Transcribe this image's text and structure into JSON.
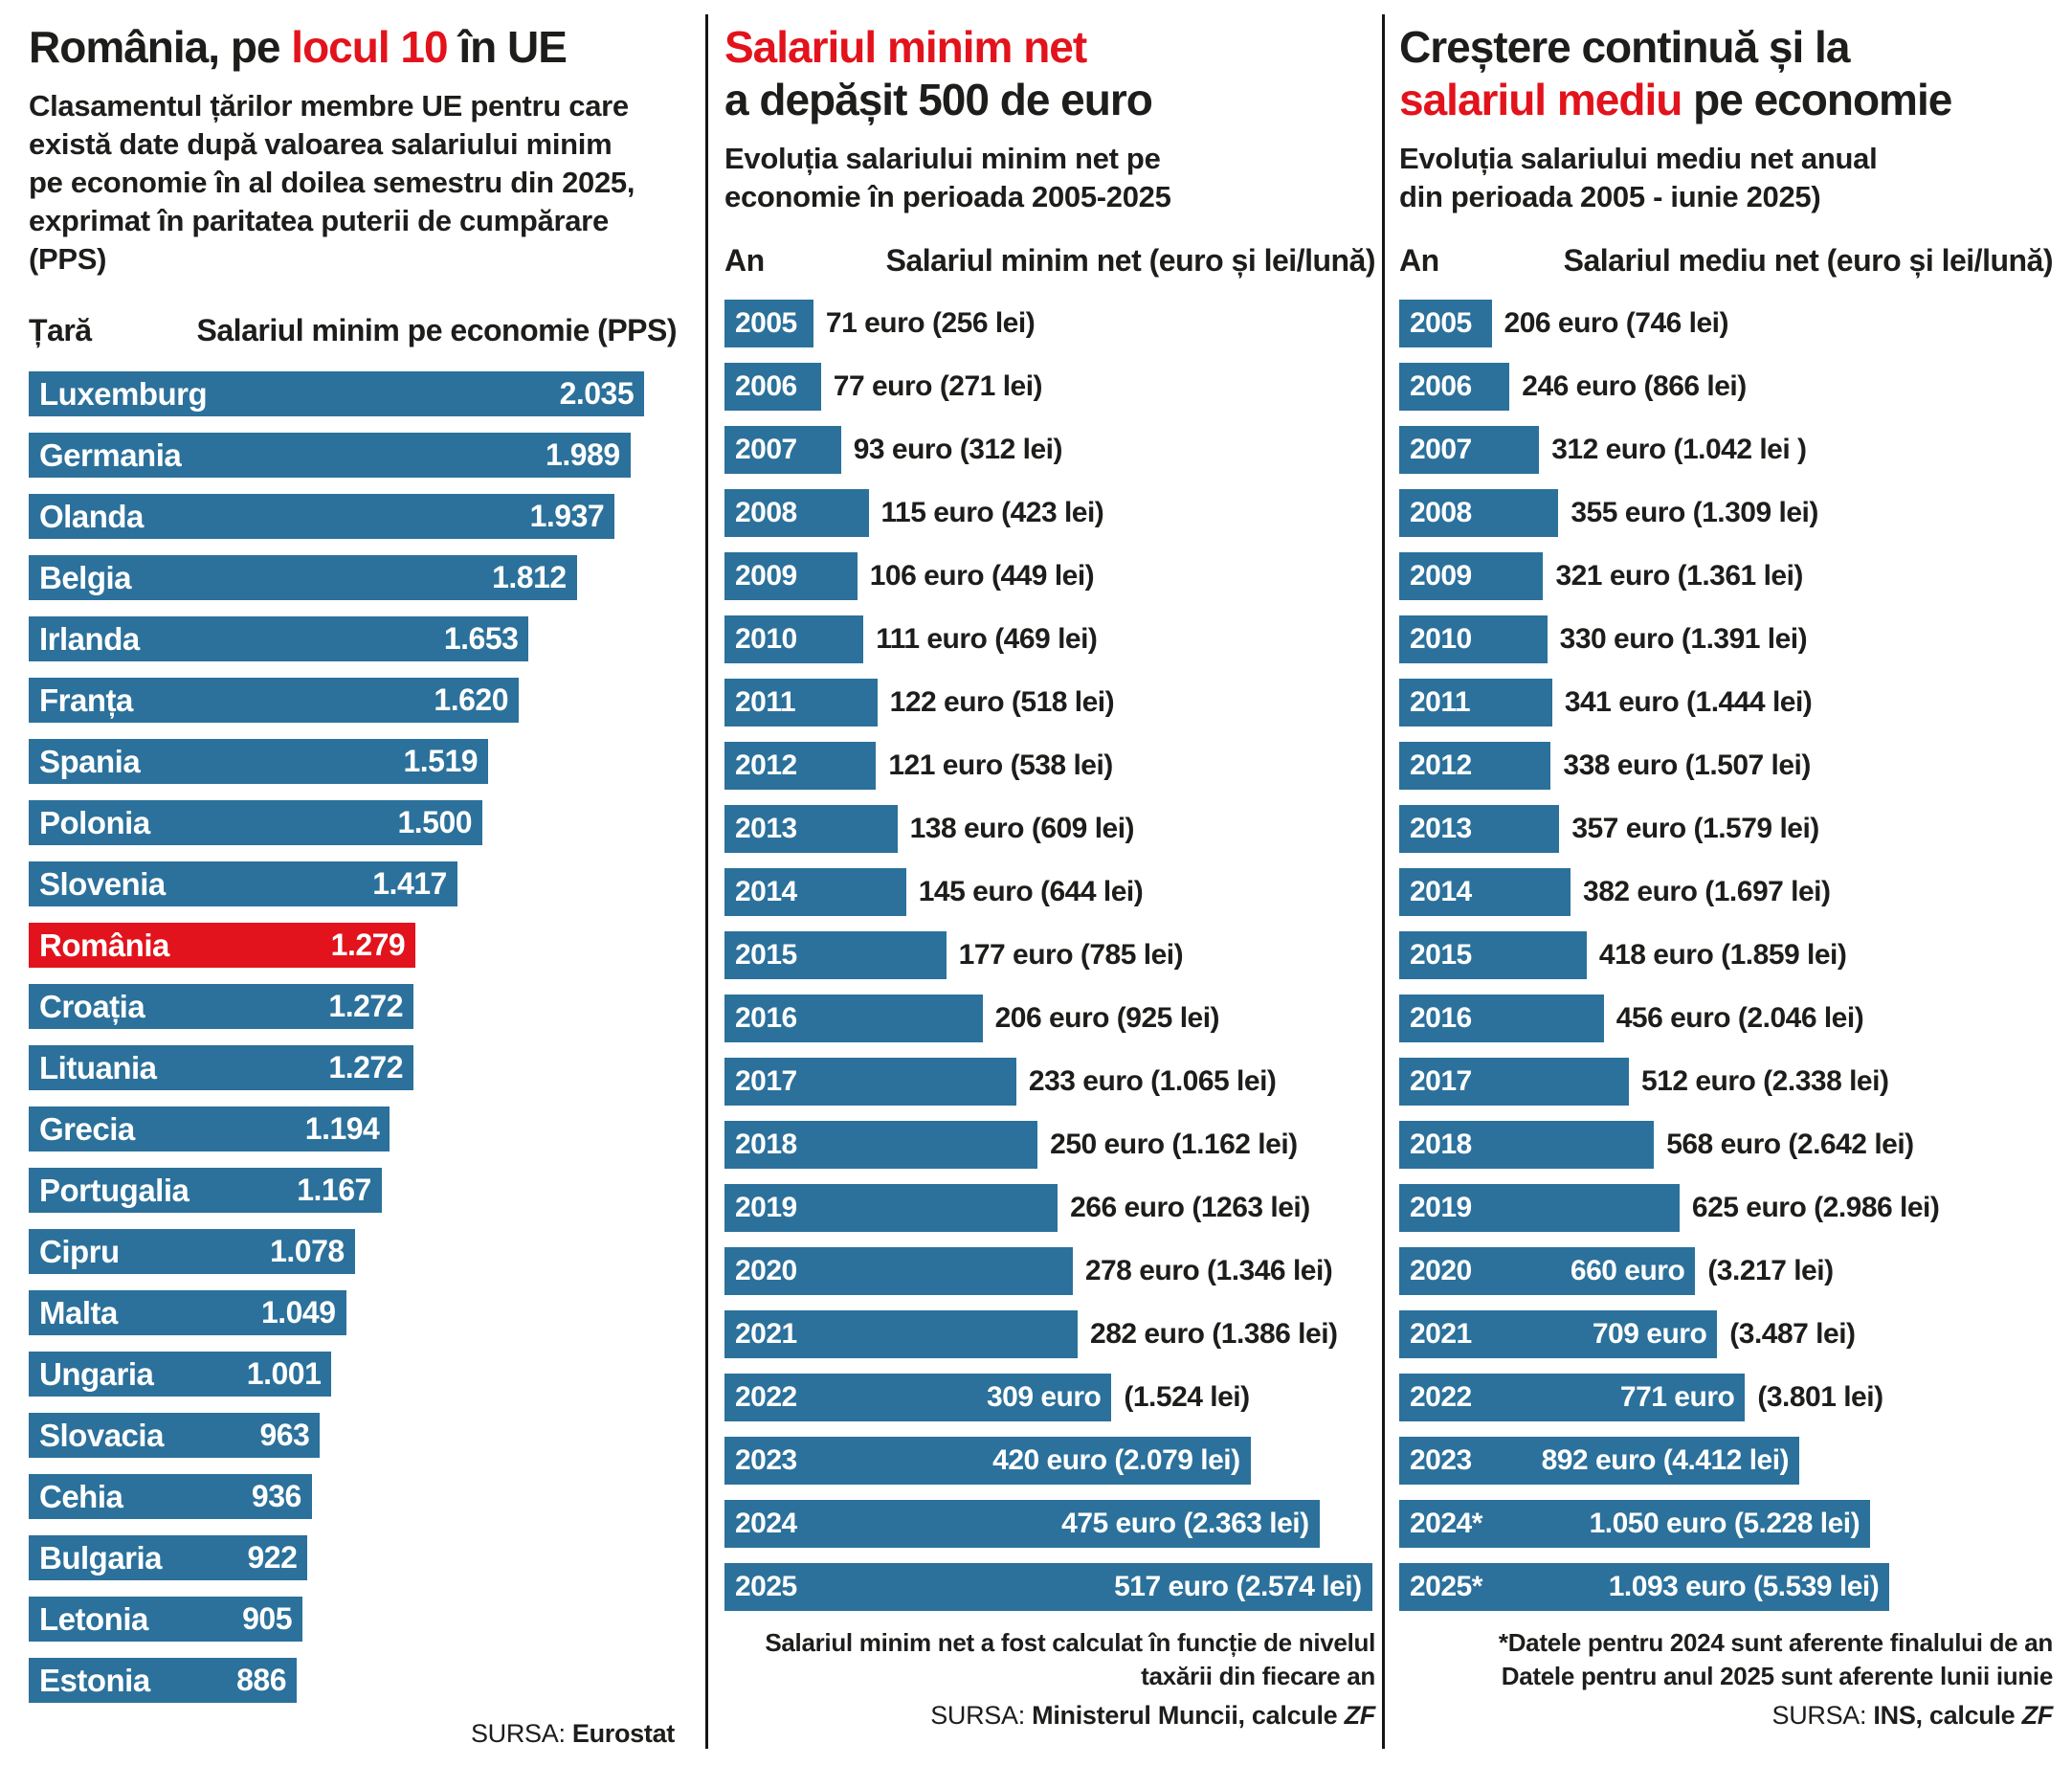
{
  "colors": {
    "bar_blue": "#2b719b",
    "accent_red": "#e2131c"
  },
  "panels": {
    "left": {
      "title_black_prefix": "România, pe ",
      "title_red": "locul 10",
      "title_black_suffix": " în UE",
      "subtitle": "Clasamentul țărilor membre UE pentru care există date după valoarea salariului minim pe economie în al doilea semestru din 2025, exprimat în paritatea puterii de cumpărare (PPS)",
      "col_header_left": "Țară",
      "col_header_right": "Salariul minim pe economie (PPS)",
      "rows": [
        {
          "label": "Luxemburg",
          "value": 2035,
          "text_in": "2.035"
        },
        {
          "label": "Germania",
          "value": 1989,
          "text_in": "1.989"
        },
        {
          "label": "Olanda",
          "value": 1937,
          "text_in": "1.937"
        },
        {
          "label": "Belgia",
          "value": 1812,
          "text_in": "1.812"
        },
        {
          "label": "Irlanda",
          "value": 1653,
          "text_in": "1.653"
        },
        {
          "label": "Franța",
          "value": 1620,
          "text_in": "1.620"
        },
        {
          "label": "Spania",
          "value": 1519,
          "text_in": "1.519"
        },
        {
          "label": "Polonia",
          "value": 1500,
          "text_in": "1.500"
        },
        {
          "label": "Slovenia",
          "value": 1417,
          "text_in": "1.417"
        },
        {
          "label": "România",
          "value": 1279,
          "text_in": "1.279",
          "highlight": true
        },
        {
          "label": "Croația",
          "value": 1272,
          "text_in": "1.272"
        },
        {
          "label": "Lituania",
          "value": 1272,
          "text_in": "1.272"
        },
        {
          "label": "Grecia",
          "value": 1194,
          "text_in": "1.194"
        },
        {
          "label": "Portugalia",
          "value": 1167,
          "text_in": "1.167"
        },
        {
          "label": "Cipru",
          "value": 1078,
          "text_in": "1.078"
        },
        {
          "label": "Malta",
          "value": 1049,
          "text_in": "1.049"
        },
        {
          "label": "Ungaria",
          "value": 1001,
          "text_in": "1.001"
        },
        {
          "label": "Slovacia",
          "value": 963,
          "text_in": "963"
        },
        {
          "label": "Cehia",
          "value": 936,
          "text_in": "936"
        },
        {
          "label": "Bulgaria",
          "value": 922,
          "text_in": "922"
        },
        {
          "label": "Letonia",
          "value": 905,
          "text_in": "905"
        },
        {
          "label": "Estonia",
          "value": 886,
          "text_in": "886"
        }
      ],
      "source_label": "SURSA: ",
      "source_name": "Eurostat"
    },
    "middle": {
      "title_red": "Salariul minim net",
      "title_black": "a depășit 500 de euro",
      "subtitle_line1": "Evoluția salariului minim net pe",
      "subtitle_line2": "economie în perioada 2005-2025",
      "col_header_left": "An",
      "col_header_right": "Salariul minim net (euro și lei/lună)",
      "rows": [
        {
          "label": "2005",
          "value": 71,
          "text_out": "71 euro (256 lei)"
        },
        {
          "label": "2006",
          "value": 77,
          "text_out": "77 euro (271 lei)"
        },
        {
          "label": "2007",
          "value": 93,
          "text_out": "93 euro (312 lei)"
        },
        {
          "label": "2008",
          "value": 115,
          "text_out": "115 euro (423 lei)"
        },
        {
          "label": "2009",
          "value": 106,
          "text_out": "106 euro (449 lei)"
        },
        {
          "label": "2010",
          "value": 111,
          "text_out": "111 euro (469 lei)"
        },
        {
          "label": "2011",
          "value": 122,
          "text_out": "122 euro (518 lei)"
        },
        {
          "label": "2012",
          "value": 121,
          "text_out": "121 euro (538 lei)"
        },
        {
          "label": "2013",
          "value": 138,
          "text_out": "138 euro (609 lei)"
        },
        {
          "label": "2014",
          "value": 145,
          "text_out": "145 euro (644 lei)"
        },
        {
          "label": "2015",
          "value": 177,
          "text_out": "177 euro (785 lei)"
        },
        {
          "label": "2016",
          "value": 206,
          "text_out": "206 euro (925 lei)"
        },
        {
          "label": "2017",
          "value": 233,
          "text_out": "233 euro (1.065 lei)"
        },
        {
          "label": "2018",
          "value": 250,
          "text_out": "250 euro (1.162 lei)"
        },
        {
          "label": "2019",
          "value": 266,
          "text_out": "266 euro (1263 lei)"
        },
        {
          "label": "2020",
          "value": 278,
          "text_out": "278 euro (1.346 lei)"
        },
        {
          "label": "2021",
          "value": 282,
          "text_out": "282 euro (1.386 lei)"
        },
        {
          "label": "2022",
          "value": 309,
          "text_in": "309 euro",
          "text_out": "(1.524 lei)"
        },
        {
          "label": "2023",
          "value": 420,
          "text_in": "420 euro (2.079 lei)"
        },
        {
          "label": "2024",
          "value": 475,
          "text_in": "475 euro (2.363 lei)"
        },
        {
          "label": "2025",
          "value": 517,
          "text_in": "517 euro (2.574 lei)"
        }
      ],
      "footnote_line1": "Salariul minim net a fost calculat în funcție de nivelul",
      "footnote_line2": "taxării din fiecare an",
      "source_label": "SURSA: ",
      "source_name": "Ministerul Muncii, calcule ",
      "source_italic": "ZF"
    },
    "right": {
      "title_black_line1": "Creștere continuă și la",
      "title_red": "salariul mediu",
      "title_black_line2": " pe economie",
      "subtitle_line1": "Evoluția salariului mediu net anual",
      "subtitle_line2": "din perioada 2005 - iunie 2025)",
      "col_header_left": "An",
      "col_header_right": "Salariul mediu net (euro și lei/lună)",
      "rows": [
        {
          "label": "2005",
          "value": 206,
          "text_out": "206 euro (746 lei)"
        },
        {
          "label": "2006",
          "value": 246,
          "text_out": "246 euro (866 lei)"
        },
        {
          "label": "2007",
          "value": 312,
          "text_out": "312 euro (1.042 lei )"
        },
        {
          "label": "2008",
          "value": 355,
          "text_out": "355 euro (1.309 lei)"
        },
        {
          "label": "2009",
          "value": 321,
          "text_out": "321 euro (1.361 lei)"
        },
        {
          "label": "2010",
          "value": 330,
          "text_out": "330 euro (1.391 lei)"
        },
        {
          "label": "2011",
          "value": 341,
          "text_out": "341 euro (1.444 lei)"
        },
        {
          "label": "2012",
          "value": 338,
          "text_out": "338 euro (1.507 lei)"
        },
        {
          "label": "2013",
          "value": 357,
          "text_out": "357 euro (1.579 lei)"
        },
        {
          "label": "2014",
          "value": 382,
          "text_out": "382 euro (1.697 lei)"
        },
        {
          "label": "2015",
          "value": 418,
          "text_out": "418 euro (1.859 lei)"
        },
        {
          "label": "2016",
          "value": 456,
          "text_out": "456 euro (2.046 lei)"
        },
        {
          "label": "2017",
          "value": 512,
          "text_out": "512 euro (2.338 lei)"
        },
        {
          "label": "2018",
          "value": 568,
          "text_out": "568 euro (2.642 lei)"
        },
        {
          "label": "2019",
          "value": 625,
          "text_out": "625 euro (2.986 lei)"
        },
        {
          "label": "2020",
          "value": 660,
          "text_in": "660 euro",
          "text_out": "(3.217 lei)"
        },
        {
          "label": "2021",
          "value": 709,
          "text_in": "709 euro",
          "text_out": "(3.487 lei)"
        },
        {
          "label": "2022",
          "value": 771,
          "text_in": "771 euro",
          "text_out": "(3.801 lei)"
        },
        {
          "label": "2023",
          "value": 892,
          "text_in": "892 euro (4.412 lei)"
        },
        {
          "label": "2024*",
          "value": 1050,
          "text_in": "1.050 euro (5.228 lei)"
        },
        {
          "label": "2025*",
          "value": 1093,
          "text_in": "1.093 euro (5.539 lei)"
        }
      ],
      "footnote_line1": "*Datele pentru 2024 sunt aferente finalului de an",
      "footnote_line2": "Datele pentru anul 2025 sunt aferente lunii iunie",
      "source_label": "SURSA: ",
      "source_name": "INS, calcule ",
      "source_italic": "ZF"
    }
  },
  "chart_data": [
    {
      "type": "bar",
      "orientation": "horizontal",
      "title": "România, pe locul 10 în UE",
      "subtitle": "Clasamentul țărilor membre UE pentru care există date după valoarea salariului minim pe economie în al doilea semestru din 2025, exprimat în paritatea puterii de cumpărare (PPS)",
      "xlabel": "Salariul minim pe economie (PPS)",
      "categories": [
        "Luxemburg",
        "Germania",
        "Olanda",
        "Belgia",
        "Irlanda",
        "Franța",
        "Spania",
        "Polonia",
        "Slovenia",
        "România",
        "Croația",
        "Lituania",
        "Grecia",
        "Portugalia",
        "Cipru",
        "Malta",
        "Ungaria",
        "Slovacia",
        "Cehia",
        "Bulgaria",
        "Letonia",
        "Estonia"
      ],
      "values": [
        2035,
        1989,
        1937,
        1812,
        1653,
        1620,
        1519,
        1500,
        1417,
        1279,
        1272,
        1272,
        1194,
        1167,
        1078,
        1049,
        1001,
        963,
        936,
        922,
        905,
        886
      ],
      "highlight_category": "România",
      "xlim": [
        0,
        2140
      ],
      "grid": false,
      "legend": "none",
      "source": "Eurostat"
    },
    {
      "type": "bar",
      "orientation": "horizontal",
      "title": "Salariul minim net a depășit 500 de euro",
      "subtitle": "Evoluția salariului minim net pe economie în perioada 2005-2025",
      "xlabel": "Salariul minim net (euro și lei/lună)",
      "categories": [
        "2005",
        "2006",
        "2007",
        "2008",
        "2009",
        "2010",
        "2011",
        "2012",
        "2013",
        "2014",
        "2015",
        "2016",
        "2017",
        "2018",
        "2019",
        "2020",
        "2021",
        "2022",
        "2023",
        "2024",
        "2025"
      ],
      "series": [
        {
          "name": "euro",
          "values": [
            71,
            77,
            93,
            115,
            106,
            111,
            122,
            121,
            138,
            145,
            177,
            206,
            233,
            250,
            266,
            278,
            282,
            309,
            420,
            475,
            517
          ]
        },
        {
          "name": "lei",
          "values": [
            256,
            271,
            312,
            423,
            449,
            469,
            518,
            538,
            609,
            644,
            785,
            925,
            1065,
            1162,
            1263,
            1346,
            1386,
            1524,
            2079,
            2363,
            2574
          ]
        }
      ],
      "xlim": [
        0,
        520
      ],
      "grid": false,
      "legend": "none",
      "footnote": "Salariul minim net a fost calculat în funcție de nivelul taxării din fiecare an",
      "source": "Ministerul Muncii, calcule ZF"
    },
    {
      "type": "bar",
      "orientation": "horizontal",
      "title": "Creștere continuă și la salariul mediu pe economie",
      "subtitle": "Evoluția salariului mediu net anual din perioada 2005 - iunie 2025)",
      "xlabel": "Salariul mediu net (euro și lei/lună)",
      "categories": [
        "2005",
        "2006",
        "2007",
        "2008",
        "2009",
        "2010",
        "2011",
        "2012",
        "2013",
        "2014",
        "2015",
        "2016",
        "2017",
        "2018",
        "2019",
        "2020",
        "2021",
        "2022",
        "2023",
        "2024*",
        "2025*"
      ],
      "series": [
        {
          "name": "euro",
          "values": [
            206,
            246,
            312,
            355,
            321,
            330,
            341,
            338,
            357,
            382,
            418,
            456,
            512,
            568,
            625,
            660,
            709,
            771,
            892,
            1050,
            1093
          ]
        },
        {
          "name": "lei",
          "values": [
            746,
            866,
            1042,
            1309,
            1361,
            1391,
            1444,
            1507,
            1579,
            1697,
            1859,
            2046,
            2338,
            2642,
            2986,
            3217,
            3487,
            3801,
            4412,
            5228,
            5539
          ]
        }
      ],
      "xlim": [
        0,
        1100
      ],
      "grid": false,
      "legend": "none",
      "footnote": "*Datele pentru 2024 sunt aferente finalului de an. Datele pentru anul 2025 sunt aferente lunii iunie",
      "source": "INS, calcule ZF"
    }
  ]
}
